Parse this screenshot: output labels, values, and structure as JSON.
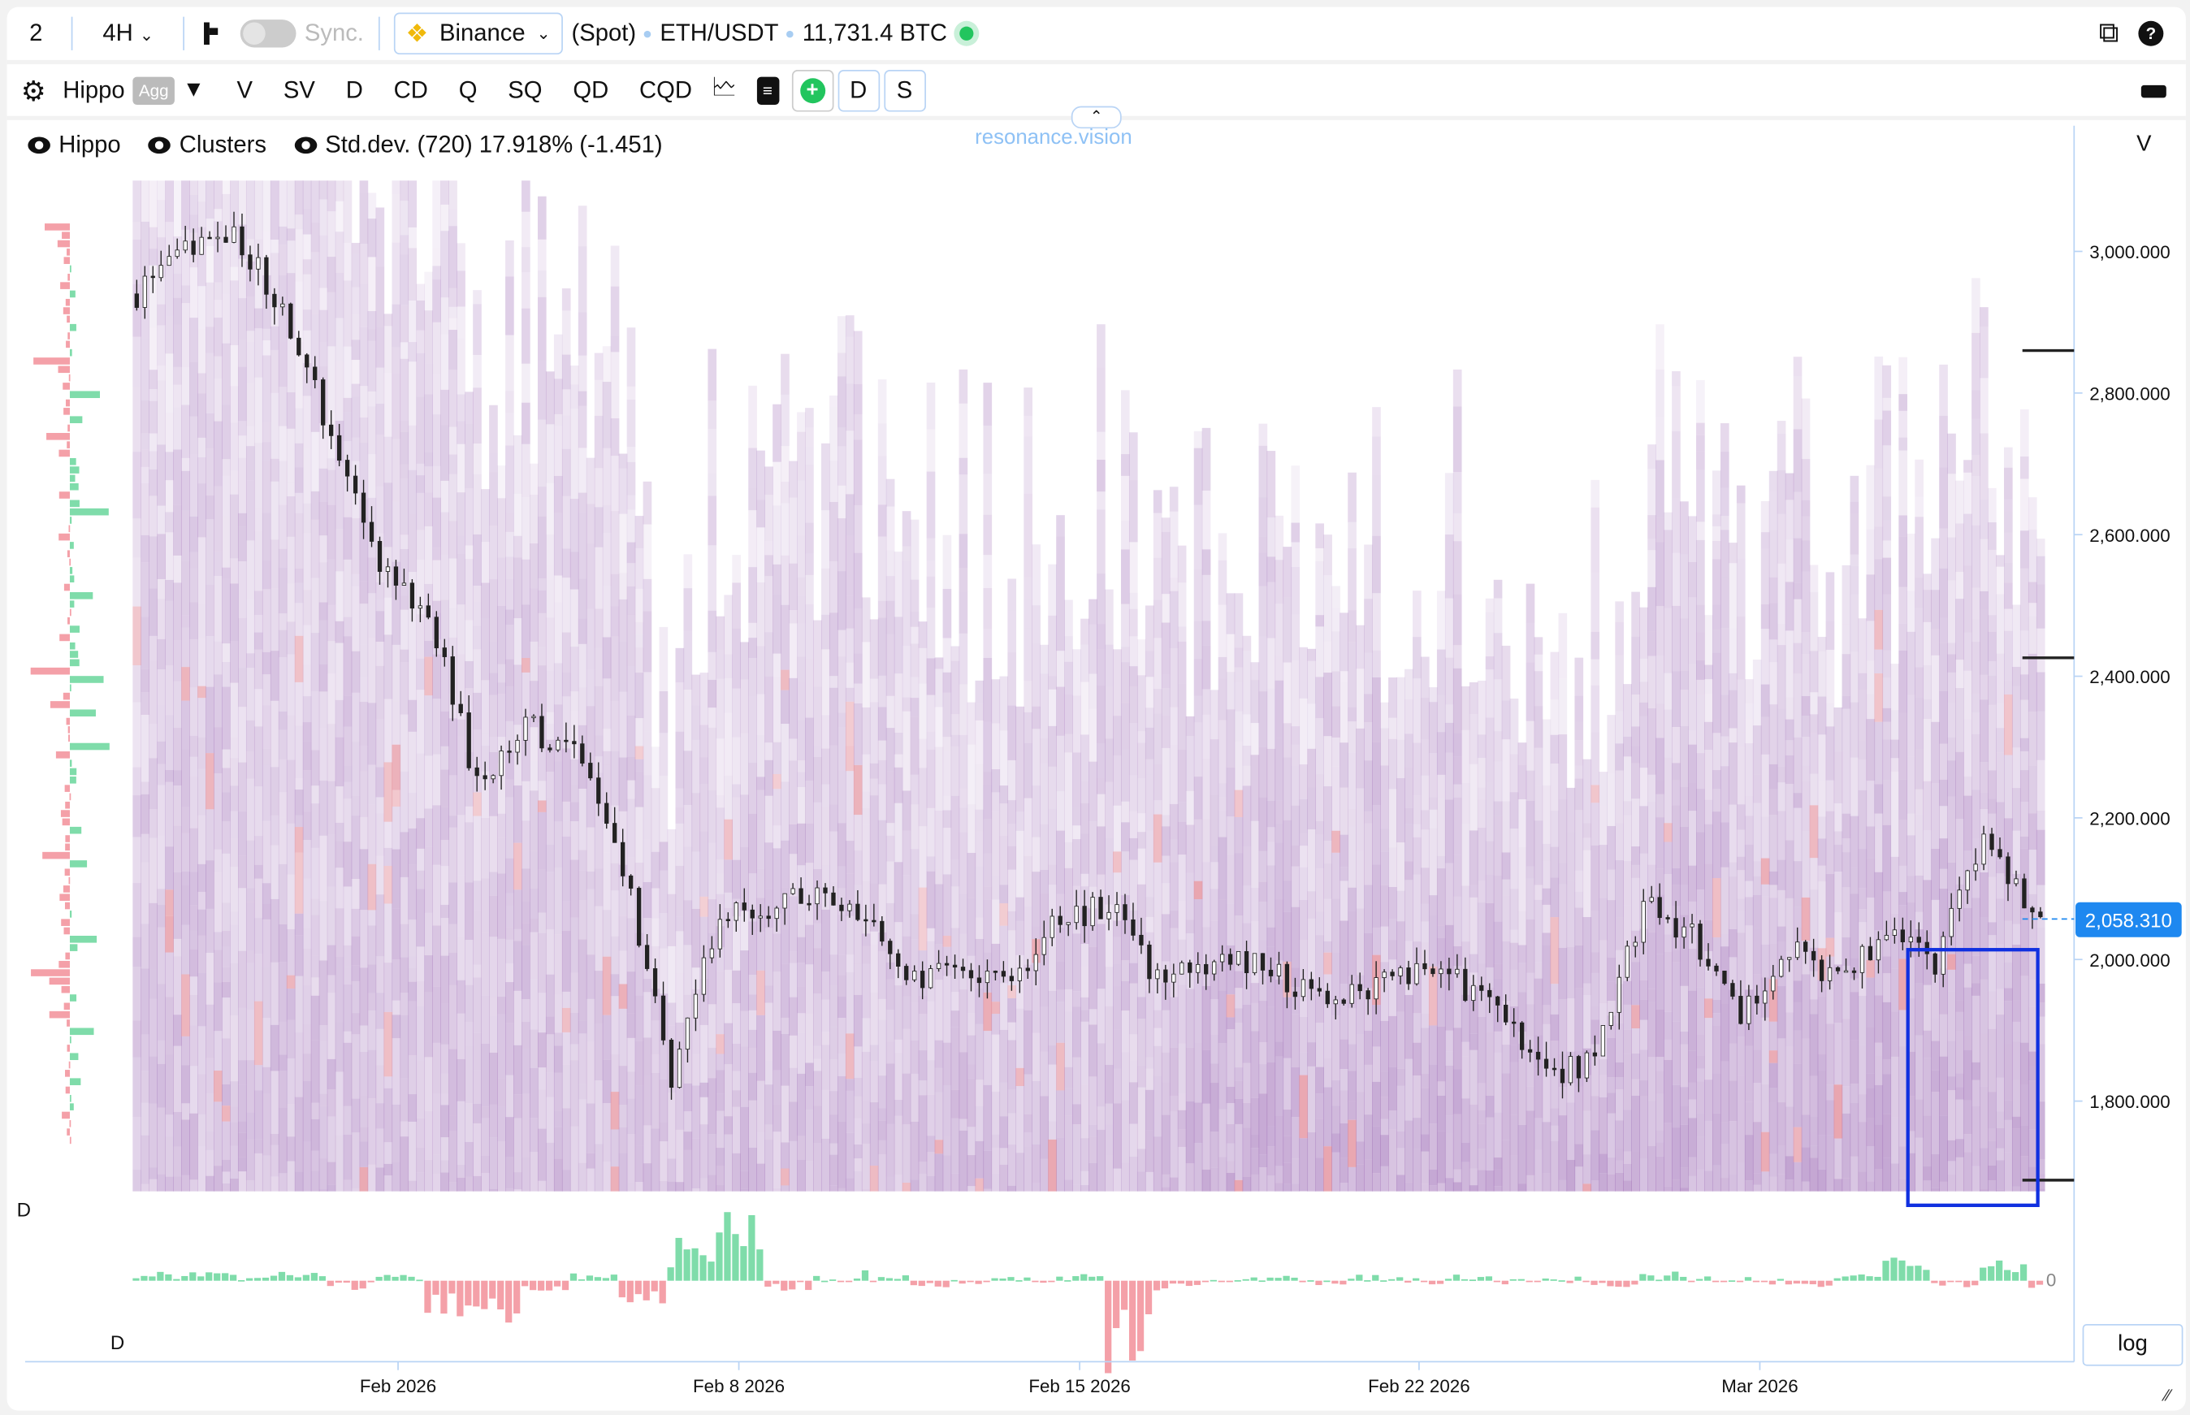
{
  "toolbar": {
    "layout_count": "2",
    "interval": "4H",
    "sync_label": "Sync.",
    "exchange": "Binance",
    "market_type": "(Spot)",
    "pair": "ETH/USDT",
    "volume": "11,731.4 BTC",
    "indicator_name": "Hippo",
    "agg_label": "Agg",
    "buttons": [
      "V",
      "SV",
      "D",
      "CD",
      "Q",
      "SQ",
      "QD",
      "CQD"
    ],
    "toggle_d": "D",
    "toggle_s": "S"
  },
  "legend": {
    "hippo": "Hippo",
    "clusters": "Clusters",
    "stddev": "Std.dev. (720) 17.918% (-1.451)"
  },
  "brand": "resonance.vision",
  "right_axis": {
    "title": "V",
    "ticks": [
      "3,000.000",
      "2,800.000",
      "2,600.000",
      "2,400.000",
      "2,200.000",
      "2,000.000",
      "1,800.000"
    ],
    "last_price": "2,058.310",
    "log_label": "log"
  },
  "delta_panel": {
    "label_top": "D",
    "label_bottom": "D",
    "zero_label": "0"
  },
  "x_axis": {
    "ticks": [
      "Feb 2026",
      "Feb 8 2026",
      "Feb 15 2026",
      "Feb 22 2026",
      "Mar 2026"
    ]
  },
  "colors": {
    "heat": "#a070b8",
    "heat_hot": "#e0808e",
    "accent": "#1e88f0",
    "bull": "#7fdcaa",
    "bear": "#f4a0a8"
  },
  "chart_data": {
    "type": "heatmap",
    "overlay": "candlestick",
    "interval": "4H",
    "y_ticks": [
      3000,
      2800,
      2600,
      2400,
      2200,
      2000,
      1800
    ],
    "ylim": [
      1670,
      3130
    ],
    "x_ticks": [
      "Feb 2026",
      "Feb 8 2026",
      "Feb 15 2026",
      "Feb 22 2026",
      "Mar 2026"
    ],
    "daily_close": {
      "dates": [
        "Jan 26",
        "Jan 27",
        "Jan 28",
        "Jan 29",
        "Jan 30",
        "Jan 31",
        "Feb 1",
        "Feb 2",
        "Feb 3",
        "Feb 4",
        "Feb 5",
        "Feb 6",
        "Feb 7",
        "Feb 8",
        "Feb 9",
        "Feb 10",
        "Feb 11",
        "Feb 12",
        "Feb 13",
        "Feb 14",
        "Feb 15",
        "Feb 16",
        "Feb 17",
        "Feb 18",
        "Feb 19",
        "Feb 20",
        "Feb 21",
        "Feb 22",
        "Feb 23",
        "Feb 24",
        "Feb 25",
        "Feb 26",
        "Feb 27",
        "Feb 28",
        "Mar 1",
        "Mar 2",
        "Mar 3",
        "Mar 4",
        "Mar 5",
        "Mar 6"
      ],
      "values": [
        2940,
        3000,
        3030,
        2920,
        2745,
        2565,
        2490,
        2250,
        2330,
        2290,
        2130,
        1835,
        2075,
        2075,
        2090,
        2055,
        1975,
        1975,
        1975,
        2055,
        2075,
        1975,
        1995,
        1995,
        1955,
        1955,
        1975,
        1975,
        1935,
        1835,
        1855,
        2075,
        2035,
        1915,
        2015,
        1975,
        2035,
        1995,
        2170,
        2058.31
      ]
    },
    "delta_daily": [
      0.1,
      0.1,
      0.05,
      0.1,
      -0.1,
      0.05,
      -0.5,
      -0.6,
      -0.2,
      0.1,
      -0.3,
      0.6,
      1.0,
      -0.1,
      0.05,
      0.1,
      -0.1,
      0,
      0,
      0.05,
      -1.2,
      -0.1,
      0,
      0.05,
      -0.05,
      0.05,
      0,
      0.05,
      -0.05,
      0.05,
      -0.1,
      0.1,
      0.05,
      0,
      -0.05,
      0.05,
      0.3,
      -0.05,
      0.3,
      -0.1
    ]
  }
}
